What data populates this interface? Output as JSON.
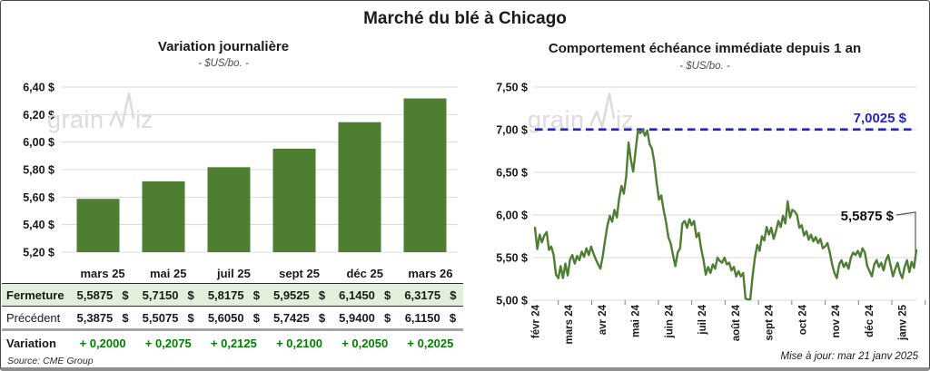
{
  "page": {
    "title": "Marché du blé à Chicago",
    "update_note": "Mise à jour: mar 21 janv 2025",
    "source_note": "Source: CME Group",
    "watermark": {
      "pre": "grain",
      "post": "iz"
    }
  },
  "colors": {
    "green": "#4e7e32",
    "light_green_row": "#e2efda",
    "variation_green": "#008000",
    "blue": "#2424cc",
    "grid": "#d9d9d9",
    "axis_text": "#1a1a1a",
    "tick_mark": "#7f7f7f",
    "callout": "#595959",
    "watermark_gray": "#dcdcdc"
  },
  "table": {
    "columns": [
      "",
      "mars 25",
      "mai 25",
      "juil 25",
      "sept 25",
      "déc 25",
      "mars 26"
    ],
    "rows": [
      {
        "label": "Fermeture",
        "style": "close",
        "values": [
          "5,5875  $",
          "5,7150  $",
          "5,8175  $",
          "5,9525  $",
          "6,1450  $",
          "6,3175  $"
        ]
      },
      {
        "label": "Précédent",
        "style": "prev",
        "values": [
          "5,3875  $",
          "5,5075  $",
          "5,6050  $",
          "5,7425  $",
          "5,9400  $",
          "6,1150  $"
        ]
      },
      {
        "label": "Variation",
        "style": "var",
        "values": [
          "+ 0,2000",
          "+ 0,2075",
          "+ 0,2125",
          "+ 0,2100",
          "+ 0,2050",
          "+ 0,2025"
        ]
      }
    ]
  },
  "chart_data": [
    {
      "type": "bar",
      "title": "Variation  journalière",
      "subtitle": "- $US/bo. -",
      "categories": [
        "mars 25",
        "mai 25",
        "juil 25",
        "sept 25",
        "déc 25",
        "mars 26"
      ],
      "values": [
        5.5875,
        5.715,
        5.8175,
        5.9525,
        6.145,
        6.3175
      ],
      "ylim": [
        5.2,
        6.4
      ],
      "ytick_values": [
        6.4,
        6.2,
        6.0,
        5.8,
        5.6,
        5.4,
        5.2
      ],
      "ytick_labels": [
        "6,40 $",
        "6,20 $",
        "6,00 $",
        "5,80 $",
        "5,60 $",
        "5,40 $",
        "5,20 $"
      ],
      "grid": true,
      "legend": "none"
    },
    {
      "type": "line",
      "title": "Comportement  échéance immédiate depuis 1 an",
      "subtitle": "- $US/bo. -",
      "x_labels": [
        "févr 24",
        "mars 24",
        "avr 24",
        "mai 24",
        "juin 24",
        "juil 24",
        "août 24",
        "sept 24",
        "oct 24",
        "nov 24",
        "déc 24",
        "janv 25"
      ],
      "ylim": [
        5.0,
        7.5
      ],
      "ytick_values": [
        7.5,
        7.0,
        6.5,
        6.0,
        5.5,
        5.0
      ],
      "ytick_labels": [
        "7,50 $",
        "7,00 $",
        "6,50 $",
        "6,00 $",
        "5,50 $",
        "5,00 $"
      ],
      "ref_line": {
        "value": 7.0025,
        "label": "7,0025 $",
        "style": "dashed"
      },
      "last_point": {
        "value": 5.5875,
        "label": "5,5875 $"
      },
      "grid": true,
      "legend": "none",
      "values": [
        5.85,
        5.6,
        5.77,
        5.68,
        5.76,
        5.8,
        5.59,
        5.63,
        5.53,
        5.3,
        5.26,
        5.4,
        5.26,
        5.43,
        5.29,
        5.48,
        5.53,
        5.43,
        5.52,
        5.47,
        5.57,
        5.51,
        5.61,
        5.53,
        5.63,
        5.55,
        5.48,
        5.42,
        5.37,
        5.52,
        5.71,
        5.88,
        5.99,
        5.92,
        6.06,
        5.97,
        6.2,
        6.34,
        6.25,
        6.45,
        6.85,
        6.65,
        6.51,
        6.75,
        6.99,
        6.96,
        7.0,
        6.93,
        6.99,
        6.83,
        6.78,
        6.62,
        6.38,
        6.18,
        6.23,
        6.06,
        5.92,
        5.74,
        5.67,
        5.53,
        5.4,
        5.56,
        5.61,
        5.9,
        5.93,
        5.85,
        5.95,
        5.88,
        5.93,
        5.74,
        5.79,
        5.61,
        5.48,
        5.3,
        5.39,
        5.32,
        5.42,
        5.37,
        5.5,
        5.46,
        5.44,
        5.5,
        5.42,
        5.44,
        5.35,
        5.39,
        5.28,
        5.34,
        5.28,
        5.32,
        5.02,
        5.01,
        5.01,
        5.28,
        5.5,
        5.65,
        5.58,
        5.75,
        5.7,
        5.86,
        5.77,
        5.85,
        5.72,
        5.81,
        5.93,
        5.86,
        5.99,
        5.9,
        6.16,
        5.97,
        6.06,
        6.04,
        6.0,
        5.85,
        5.88,
        5.76,
        5.81,
        5.71,
        5.77,
        5.69,
        5.74,
        5.67,
        5.72,
        5.61,
        5.63,
        5.67,
        5.56,
        5.42,
        5.32,
        5.26,
        5.42,
        5.47,
        5.39,
        5.44,
        5.37,
        5.5,
        5.56,
        5.53,
        5.58,
        5.51,
        5.61,
        5.56,
        5.4,
        5.34,
        5.28,
        5.42,
        5.47,
        5.39,
        5.44,
        5.35,
        5.47,
        5.53,
        5.4,
        5.28,
        5.37,
        5.44,
        5.32,
        5.26,
        5.39,
        5.47,
        5.33,
        5.45,
        5.38,
        5.5875
      ]
    }
  ]
}
